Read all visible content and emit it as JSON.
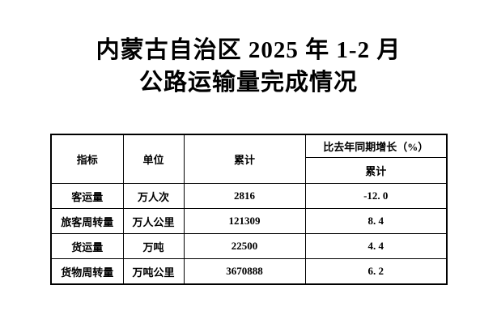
{
  "colors": {
    "background": "#ffffff",
    "text": "#000000",
    "table_border": "#000000"
  },
  "title": {
    "line1": "内蒙古自治区 2025 年 1-2 月",
    "line2": "公路运输量完成情况"
  },
  "table": {
    "header": {
      "indicator": "指标",
      "unit": "单位",
      "cumulative": "累计",
      "growth_group": "比去年同期增长（%）",
      "growth_sub": "累计"
    },
    "rows": [
      {
        "indicator": "客运量",
        "unit": "万人次",
        "cumulative": "2816",
        "growth": "-12. 0"
      },
      {
        "indicator": "旅客周转量",
        "unit": "万人公里",
        "cumulative": "121309",
        "growth": "8. 4"
      },
      {
        "indicator": "货运量",
        "unit": "万吨",
        "cumulative": "22500",
        "growth": "4. 4"
      },
      {
        "indicator": "货物周转量",
        "unit": "万吨公里",
        "cumulative": "3670888",
        "growth": "6. 2"
      }
    ]
  },
  "chart_data": {
    "type": "table",
    "title": "内蒙古自治区 2025 年 1-2 月 公路运输量完成情况",
    "columns": [
      "指标",
      "单位",
      "累计",
      "比去年同期增长（%）累计"
    ],
    "rows": [
      [
        "客运量",
        "万人次",
        2816,
        -12.0
      ],
      [
        "旅客周转量",
        "万人公里",
        121309,
        8.4
      ],
      [
        "货运量",
        "万吨",
        22500,
        4.4
      ],
      [
        "货物周转量",
        "万吨公里",
        3670888,
        6.2
      ]
    ]
  }
}
